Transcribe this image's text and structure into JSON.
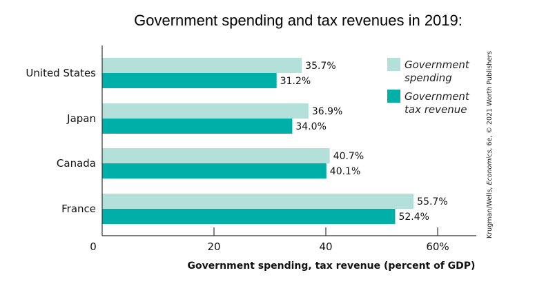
{
  "colors": {
    "spending": "#b4e0da",
    "revenue": "#00b0a8",
    "axis": "#333333"
  },
  "chart_data": {
    "type": "bar",
    "orientation": "horizontal",
    "title": "Government spending and tax revenues in 2019:",
    "xlabel": "Government spending, tax revenue (percent of GDP)",
    "ylabel": "",
    "xlim": [
      0,
      67
    ],
    "xticks": [
      {
        "value": 0,
        "label": "0"
      },
      {
        "value": 20,
        "label": "20"
      },
      {
        "value": 40,
        "label": "40"
      },
      {
        "value": 60,
        "label": "60%"
      }
    ],
    "categories": [
      "United States",
      "Japan",
      "Canada",
      "France"
    ],
    "series": [
      {
        "name_lines": [
          "Government",
          "spending"
        ],
        "color_key": "spending",
        "values": [
          35.7,
          36.9,
          40.7,
          55.7
        ],
        "labels": [
          "35.7%",
          "36.9%",
          "40.7%",
          "55.7%"
        ]
      },
      {
        "name_lines": [
          "Government",
          "tax revenue"
        ],
        "color_key": "revenue",
        "values": [
          31.2,
          34.0,
          40.1,
          52.4
        ],
        "labels": [
          "31.2%",
          "34.0%",
          "40.1%",
          "52.4%"
        ]
      }
    ],
    "legend_position": "top-right",
    "grid": false,
    "credit": {
      "prefix": "Krugman/Wells, ",
      "italic": "Economics",
      "suffix": ", 6e, © 2021 Worth Publishers"
    }
  }
}
